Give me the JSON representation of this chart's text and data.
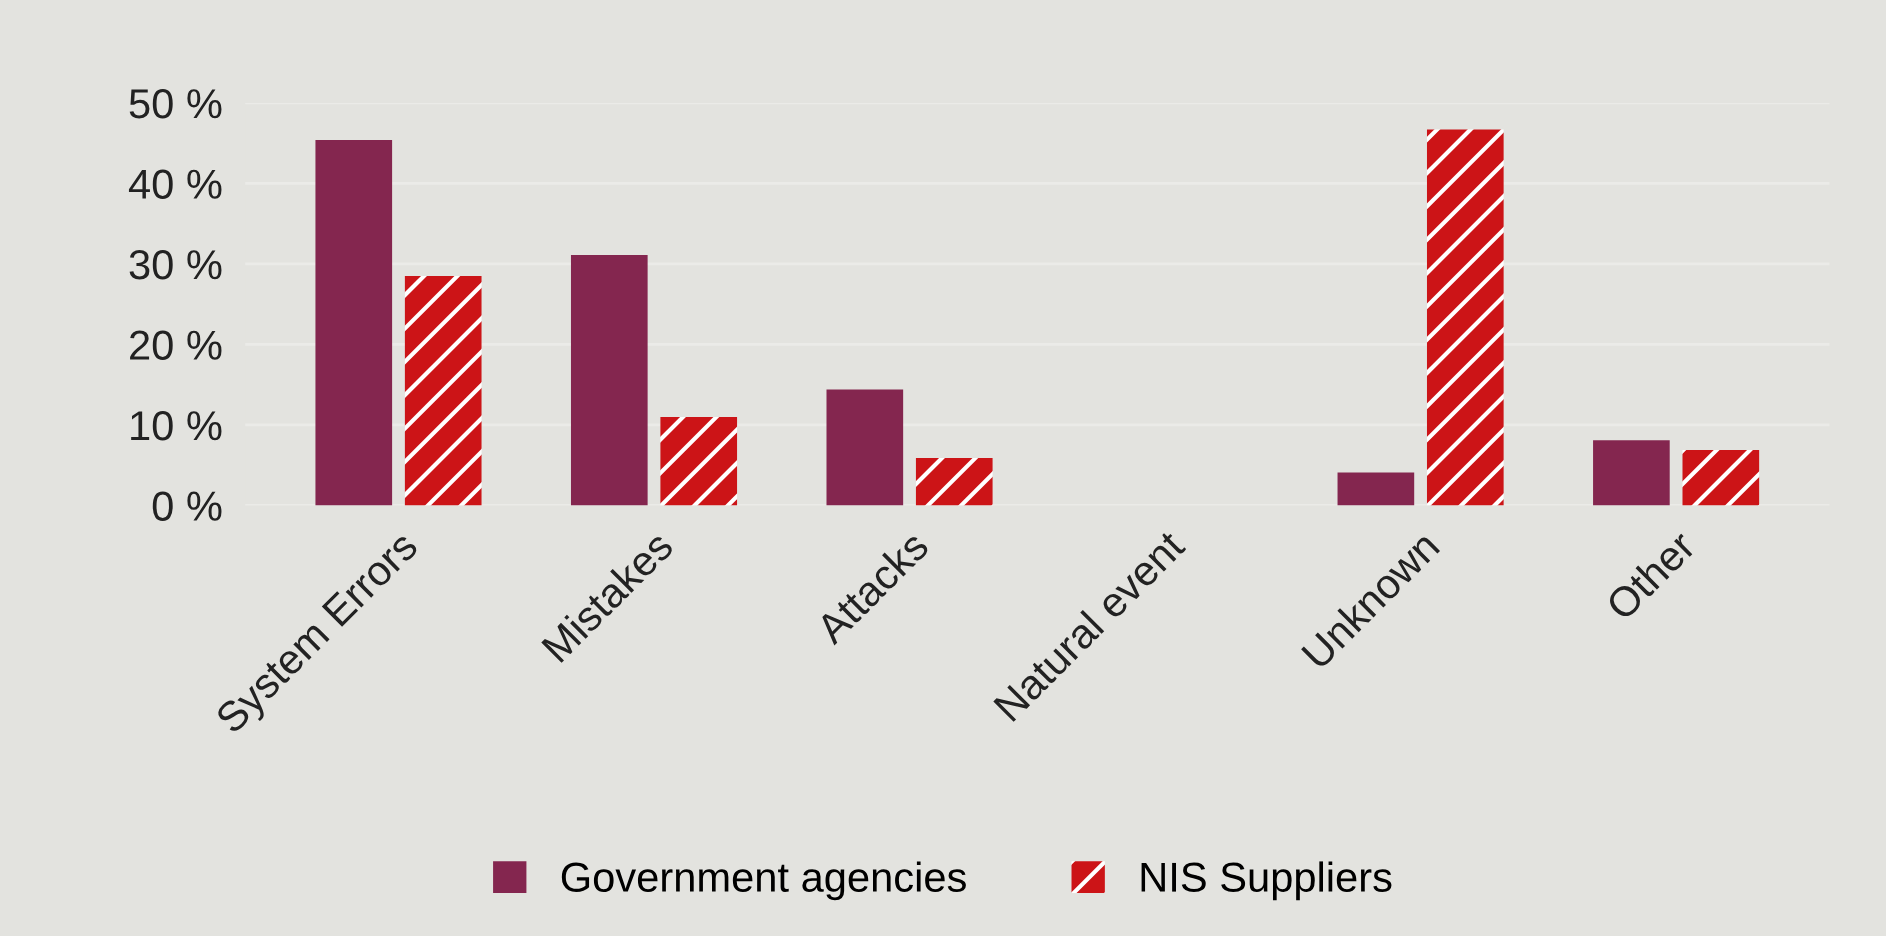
{
  "chart_data": {
    "type": "bar",
    "categories": [
      "System Errors",
      "Mistakes",
      "Attacks",
      "Natural event",
      "Unknown",
      "Other"
    ],
    "series": [
      {
        "name": "Government agencies",
        "color": "#84264f",
        "values": [
          45.4,
          31.1,
          14.4,
          0,
          4.1,
          8.1
        ]
      },
      {
        "name": "NIS Suppliers",
        "color": "#cc1417",
        "values": [
          28.5,
          11.0,
          5.9,
          0,
          46.7,
          6.9
        ]
      }
    ],
    "ylim": [
      0,
      50
    ],
    "yticks": [
      {
        "value": 0,
        "label": "0 %"
      },
      {
        "value": 10,
        "label": "10 %"
      },
      {
        "value": 20,
        "label": "20 %"
      },
      {
        "value": 30,
        "label": "30 %"
      },
      {
        "value": 40,
        "label": "40 %"
      },
      {
        "value": 50,
        "label": "50 %"
      }
    ],
    "grid": "y",
    "legend": "bottom"
  }
}
